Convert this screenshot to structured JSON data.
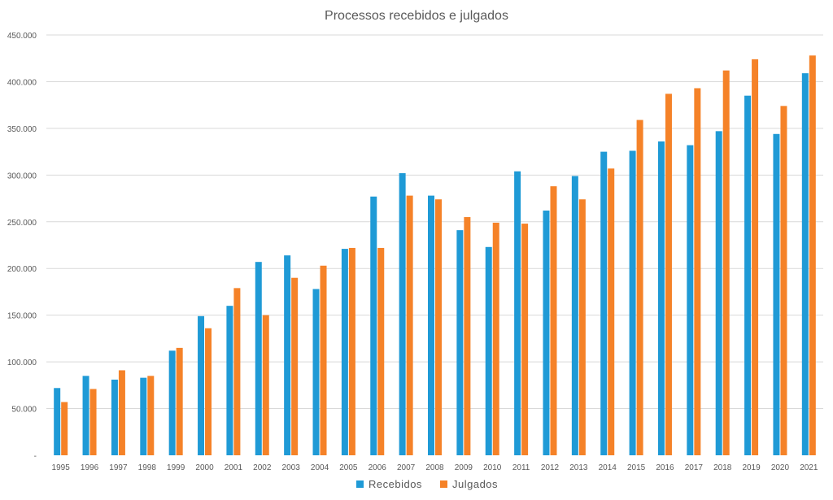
{
  "chart_data": {
    "type": "bar",
    "title": "Processos recebidos e julgados",
    "xlabel": "",
    "ylabel": "",
    "ylim": [
      0,
      450000
    ],
    "y_ticks": [
      0,
      50000,
      100000,
      150000,
      200000,
      250000,
      300000,
      350000,
      400000,
      450000
    ],
    "y_tick_labels": [
      "-",
      "50.000",
      "100.000",
      "150.000",
      "200.000",
      "250.000",
      "300.000",
      "350.000",
      "400.000",
      "450.000"
    ],
    "grid": true,
    "legend_position": "bottom",
    "categories": [
      "1995",
      "1996",
      "1997",
      "1998",
      "1999",
      "2000",
      "2001",
      "2002",
      "2003",
      "2004",
      "2005",
      "2006",
      "2007",
      "2008",
      "2009",
      "2010",
      "2011",
      "2012",
      "2013",
      "2014",
      "2015",
      "2016",
      "2017",
      "2018",
      "2019",
      "2020",
      "2021"
    ],
    "series": [
      {
        "name": "Recebidos",
        "color": "#1f9ad6",
        "values": [
          72000,
          85000,
          81000,
          83000,
          112000,
          149000,
          160000,
          207000,
          214000,
          178000,
          221000,
          277000,
          302000,
          278000,
          241000,
          223000,
          304000,
          262000,
          299000,
          325000,
          326000,
          336000,
          332000,
          347000,
          385000,
          344000,
          409000
        ]
      },
      {
        "name": "Julgados",
        "color": "#f58228",
        "values": [
          57000,
          71000,
          91000,
          85000,
          115000,
          136000,
          179000,
          150000,
          190000,
          203000,
          222000,
          222000,
          278000,
          274000,
          255000,
          249000,
          248000,
          288000,
          274000,
          307000,
          359000,
          387000,
          393000,
          412000,
          424000,
          374000,
          428000
        ]
      }
    ]
  }
}
